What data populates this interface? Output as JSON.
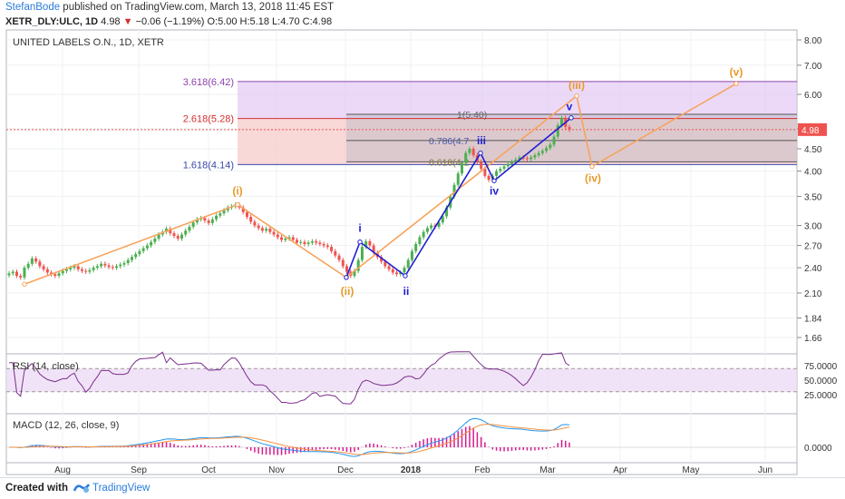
{
  "header": {
    "author": "StefanBode",
    "published_text": " published on TradingView.com, March 13, 2018 11:45 EST",
    "symbol": "XETR_DLY:ULC, 1D",
    "last": "4.98",
    "change": "−0.06 (−1.19%)",
    "ohlc": "O:5.00 H:5.18 L:4.70 C:4.98"
  },
  "footer": {
    "created_with": "Created with",
    "brand": "TradingView"
  },
  "chart_data": {
    "type": "candlestick",
    "title": "UNITED LABELS O.N., 1D, XETR",
    "y_ticks": [
      "8.00",
      "7.00",
      "6.00",
      "5.00",
      "4.50",
      "4.00",
      "3.50",
      "3.00",
      "2.70",
      "2.40",
      "2.10",
      "1.84",
      "1.66"
    ],
    "y_scale": "log",
    "y_range": [
      1.5,
      8.5
    ],
    "x_ticks": [
      "Aug",
      "Sep",
      "Oct",
      "Nov",
      "Dec",
      "2018",
      "Feb",
      "Mar",
      "Apr",
      "May",
      "Jun"
    ],
    "last_price_label": "4.98",
    "colors": {
      "up": "#4caf50",
      "down": "#ef5350",
      "wave_orange": "#f7a35c",
      "wave_blue": "#1f1fd1",
      "rsi": "#7b2d8c",
      "macd": "#2196f3",
      "signal": "#f7903c",
      "hist": "#d91b8f"
    },
    "close_series": [
      2.33,
      2.35,
      2.3,
      2.28,
      2.4,
      2.45,
      2.52,
      2.48,
      2.42,
      2.38,
      2.34,
      2.32,
      2.3,
      2.33,
      2.36,
      2.38,
      2.4,
      2.42,
      2.38,
      2.36,
      2.35,
      2.37,
      2.4,
      2.42,
      2.45,
      2.43,
      2.41,
      2.4,
      2.42,
      2.44,
      2.46,
      2.5,
      2.54,
      2.58,
      2.62,
      2.66,
      2.7,
      2.75,
      2.8,
      2.86,
      2.9,
      2.95,
      2.88,
      2.84,
      2.8,
      2.86,
      2.92,
      2.98,
      3.05,
      3.1,
      3.12,
      3.08,
      3.04,
      3.1,
      3.16,
      3.2,
      3.25,
      3.3,
      3.32,
      3.35,
      3.3,
      3.22,
      3.14,
      3.06,
      3.0,
      2.96,
      2.92,
      2.95,
      2.9,
      2.86,
      2.82,
      2.78,
      2.8,
      2.82,
      2.78,
      2.74,
      2.75,
      2.72,
      2.74,
      2.76,
      2.74,
      2.72,
      2.7,
      2.68,
      2.62,
      2.56,
      2.5,
      2.42,
      2.35,
      2.3,
      2.36,
      2.5,
      2.68,
      2.76,
      2.7,
      2.6,
      2.54,
      2.48,
      2.42,
      2.38,
      2.34,
      2.32,
      2.34,
      2.4,
      2.5,
      2.62,
      2.72,
      2.82,
      2.9,
      2.96,
      3.0,
      2.98,
      3.05,
      3.15,
      3.3,
      3.5,
      3.72,
      3.95,
      4.18,
      4.4,
      4.5,
      4.35,
      4.2,
      4.05,
      3.9,
      3.82,
      3.9,
      4.0,
      4.05,
      4.1,
      4.15,
      4.2,
      4.25,
      4.3,
      4.28,
      4.26,
      4.3,
      4.35,
      4.4,
      4.45,
      4.52,
      4.6,
      4.8,
      5.1,
      5.3,
      5.05,
      4.98
    ],
    "fib_levels": [
      {
        "label": "3.618(6.42)",
        "value": 6.42,
        "color": "#8e44ad"
      },
      {
        "label": "2.618(5.28)",
        "value": 5.28,
        "color": "#d32f2f"
      },
      {
        "label": "1.618(4.14)",
        "value": 4.14,
        "color": "#3949ab"
      }
    ],
    "fib_inner": [
      {
        "label": "1(5.40)",
        "value": 5.4
      },
      {
        "label": "0.786(4.7",
        "value": 4.7
      },
      {
        "label": "0.618(4.2",
        "value": 4.2
      }
    ],
    "wave_labels_orange": [
      "(i)",
      "(ii)",
      "(iii)",
      "(iv)",
      "(v)"
    ],
    "wave_labels_blue": [
      "i",
      "ii",
      "iii",
      "iv",
      "v"
    ],
    "rsi": {
      "title": "RSI (14, close)",
      "ticks": [
        "75.0000",
        "50.0000",
        "25.0000"
      ],
      "upper": 70,
      "lower": 30
    },
    "macd": {
      "title": "MACD (12, 26, close, 9)",
      "ticks": [
        "0.0000"
      ]
    }
  }
}
